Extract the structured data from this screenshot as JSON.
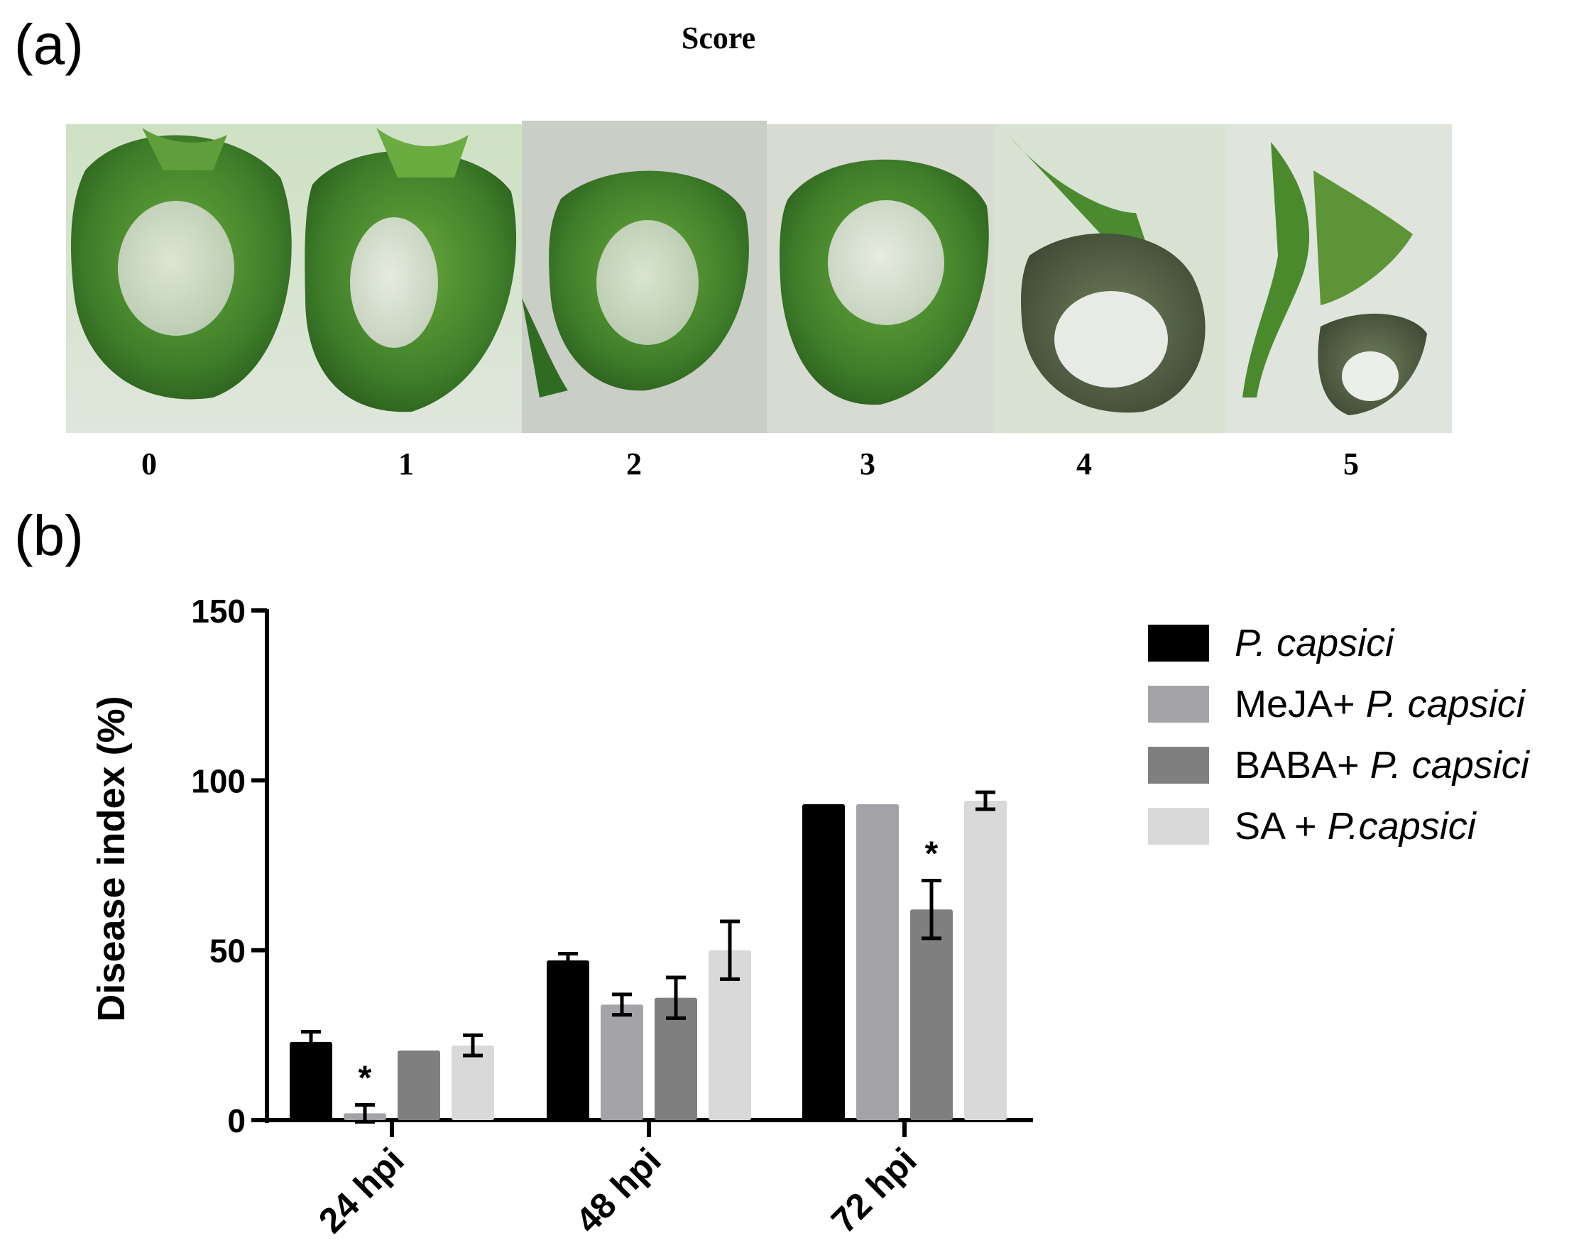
{
  "panels": {
    "a_label": "(a)",
    "b_label": "(b)"
  },
  "score_panel": {
    "title": "Score",
    "scores": [
      "0",
      "1",
      "2",
      "3",
      "4",
      "5"
    ]
  },
  "chart_data": {
    "type": "bar",
    "categories": [
      "24 hpi",
      "48 hpi",
      "72 hpi"
    ],
    "ylabel": "Disease index (%)",
    "xlabel": "",
    "ylim": [
      0,
      150
    ],
    "yticks": [
      "0",
      "50",
      "100",
      "150"
    ],
    "grid": false,
    "legend_position": "right",
    "series": [
      {
        "name": "P. capsici",
        "values": [
          23,
          47,
          93
        ],
        "errors": [
          3,
          2,
          0
        ],
        "color": "#000000"
      },
      {
        "name": "MeJA+ P. capsici",
        "values": [
          2,
          34,
          93
        ],
        "errors": [
          2.5,
          3,
          0
        ],
        "color": "#a4a4a8"
      },
      {
        "name": "BABA+ P. capsici",
        "values": [
          20.5,
          36,
          62
        ],
        "errors": [
          0,
          6,
          8.5
        ],
        "color": "#7f7f7f"
      },
      {
        "name": "SA + P.capsici",
        "values": [
          22,
          50,
          94
        ],
        "errors": [
          3,
          8.5,
          2.5
        ],
        "color": "#d9d9d9"
      }
    ],
    "significance": [
      {
        "category": "24 hpi",
        "series": "MeJA+ P. capsici",
        "mark": "*"
      },
      {
        "category": "72 hpi",
        "series": "BABA+ P. capsici",
        "mark": "*"
      }
    ]
  }
}
